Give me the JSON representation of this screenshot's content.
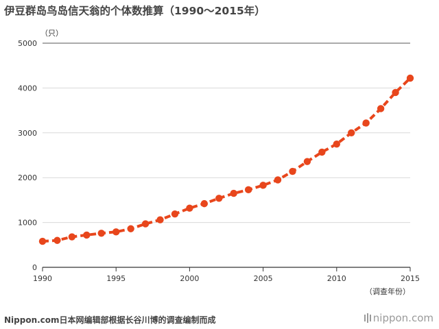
{
  "title": "伊豆群岛鸟岛信天翁的个体数推算（1990〜2015年）",
  "footer": {
    "source": "Nippon.com日本网编辑部根据长谷川博的调查编制而成",
    "brand": "nippon.com"
  },
  "chart_data": {
    "type": "line",
    "title": "伊豆群岛鸟岛信天翁的个体数推算（1990〜2015年）",
    "xlabel": "（调查年份）",
    "ylabel": "（只）",
    "xlim": [
      1990,
      2015
    ],
    "ylim": [
      0,
      5000
    ],
    "x_ticks": [
      1990,
      1995,
      2000,
      2005,
      2010,
      2015
    ],
    "x_tick_labels": [
      "1990",
      "1995",
      "2000",
      "2005",
      "2010",
      "2015"
    ],
    "y_ticks": [
      0,
      1000,
      2000,
      3000,
      4000,
      5000
    ],
    "y_tick_labels": [
      "0",
      "1000",
      "2000",
      "3000",
      "4000",
      "5000"
    ],
    "grid": true,
    "color": "#e8461c",
    "series": [
      {
        "x": [
          1990,
          1991,
          1992,
          1993,
          1994,
          1995,
          1996,
          1997,
          1998,
          1999,
          2000,
          2001,
          2002,
          2003,
          2004,
          2005,
          2006,
          2007,
          2008,
          2009,
          2010,
          2011,
          2012,
          2013,
          2014,
          2015
        ],
        "y": [
          580,
          600,
          680,
          720,
          760,
          790,
          860,
          970,
          1060,
          1190,
          1320,
          1420,
          1540,
          1650,
          1730,
          1830,
          1950,
          2140,
          2360,
          2570,
          2750,
          3000,
          3220,
          3540,
          3900,
          4220
        ]
      }
    ]
  }
}
